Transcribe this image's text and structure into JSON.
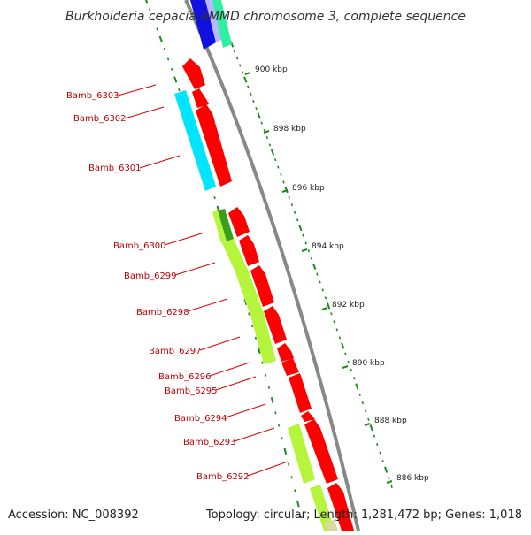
{
  "title": "Burkholderia cepacia AMMD chromosome 3, complete sequence",
  "footer": {
    "accession": "Accession: NC_008392",
    "summary": "Topology: circular; Length: 1,281,472 bp; Genes: 1,018"
  },
  "colors": {
    "backbone": "#888888",
    "tick": "#1e8a1e",
    "label_text": "#c00000",
    "label_line": "#e00000",
    "gene_red": "#ff0000",
    "cds_cyan": "#00e5ff",
    "cds_lime": "#b5f53c",
    "cds_dark_green": "#3a9e1a",
    "cds_blue": "#1010e0",
    "cds_mint": "#2ef0a0",
    "cds_tan": "#d8d8a0"
  },
  "kbp_marks": [
    {
      "label": "900 kbp"
    },
    {
      "label": "898 kbp"
    },
    {
      "label": "896 kbp"
    },
    {
      "label": "894 kbp"
    },
    {
      "label": "892 kbp"
    },
    {
      "label": "890 kbp"
    },
    {
      "label": "888 kbp"
    },
    {
      "label": "886 kbp"
    }
  ],
  "genes": [
    {
      "label": "Bamb_6303"
    },
    {
      "label": "Bamb_6302"
    },
    {
      "label": "Bamb_6301"
    },
    {
      "label": "Bamb_6300"
    },
    {
      "label": "Bamb_6299"
    },
    {
      "label": "Bamb_6298"
    },
    {
      "label": "Bamb_6297"
    },
    {
      "label": "Bamb_6296"
    },
    {
      "label": "Bamb_6295"
    },
    {
      "label": "Bamb_6294"
    },
    {
      "label": "Bamb_6293"
    },
    {
      "label": "Bamb_6292"
    }
  ]
}
